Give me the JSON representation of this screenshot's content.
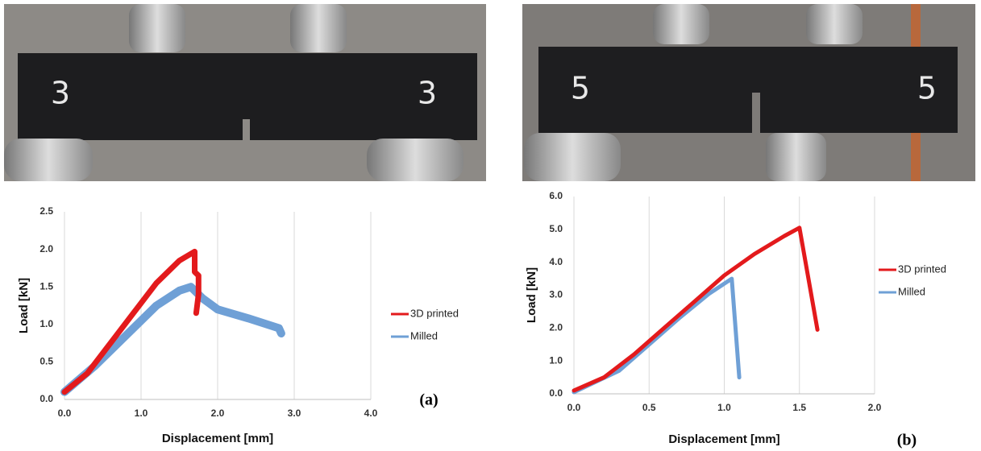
{
  "photos": [
    {
      "labels": [
        "3",
        "3"
      ]
    },
    {
      "labels": [
        "5",
        "5"
      ]
    }
  ],
  "chart_data": [
    {
      "type": "line",
      "annotation": "(a)",
      "x_label": "Displacement [mm]",
      "y_label": "Load [kN]",
      "xlim": [
        0,
        4
      ],
      "ylim": [
        0,
        2.5
      ],
      "xticks": [
        {
          "value": 0,
          "label": "0.0"
        },
        {
          "value": 1,
          "label": "1.0"
        },
        {
          "value": 2,
          "label": "2.0"
        },
        {
          "value": 3,
          "label": "3.0"
        },
        {
          "value": 4,
          "label": "4.0"
        }
      ],
      "yticks": [
        {
          "value": 0,
          "label": "0.0"
        },
        {
          "value": 0.5,
          "label": "0.5"
        },
        {
          "value": 1,
          "label": "1.0"
        },
        {
          "value": 1.5,
          "label": "1.5"
        },
        {
          "value": 2,
          "label": "2.0"
        },
        {
          "value": 2.5,
          "label": "2.5"
        }
      ],
      "grid": "x",
      "legend": "right",
      "series": [
        {
          "name": "3D printed",
          "color": "#e31a1c",
          "x": [
            0,
            0.3,
            0.6,
            0.9,
            1.2,
            1.5,
            1.7,
            1.7,
            1.75,
            1.75,
            1.72
          ],
          "values": [
            0.1,
            0.35,
            0.75,
            1.15,
            1.55,
            1.85,
            1.97,
            1.7,
            1.65,
            1.4,
            1.15
          ]
        },
        {
          "name": "Milled",
          "color": "#6fa0d6",
          "x": [
            0,
            0.4,
            0.8,
            1.2,
            1.5,
            1.65,
            1.8,
            2.0,
            2.4,
            2.8,
            2.83
          ],
          "values": [
            0.1,
            0.45,
            0.85,
            1.25,
            1.45,
            1.5,
            1.35,
            1.2,
            1.08,
            0.95,
            0.88
          ]
        }
      ]
    },
    {
      "type": "line",
      "annotation": "(b)",
      "x_label": "Displacement [mm]",
      "y_label": "Load [kN]",
      "xlim": [
        0,
        2
      ],
      "ylim": [
        0,
        6
      ],
      "xticks": [
        {
          "value": 0,
          "label": "0.0"
        },
        {
          "value": 0.5,
          "label": "0.5"
        },
        {
          "value": 1,
          "label": "1.0"
        },
        {
          "value": 1.5,
          "label": "1.5"
        },
        {
          "value": 2,
          "label": "2.0"
        }
      ],
      "yticks": [
        {
          "value": 0,
          "label": "0.0"
        },
        {
          "value": 1,
          "label": "1.0"
        },
        {
          "value": 2,
          "label": "2.0"
        },
        {
          "value": 3,
          "label": "3.0"
        },
        {
          "value": 4,
          "label": "4.0"
        },
        {
          "value": 5,
          "label": "5.0"
        },
        {
          "value": 6,
          "label": "6.0"
        }
      ],
      "grid": "x",
      "legend": "right",
      "series": [
        {
          "name": "3D printed",
          "color": "#e31a1c",
          "x": [
            0,
            0.2,
            0.4,
            0.6,
            0.8,
            1.0,
            1.2,
            1.4,
            1.5,
            1.62
          ],
          "values": [
            0.1,
            0.5,
            1.2,
            2.0,
            2.8,
            3.6,
            4.25,
            4.8,
            5.05,
            1.95
          ]
        },
        {
          "name": "Milled",
          "color": "#6fa0d6",
          "x": [
            0,
            0.3,
            0.5,
            0.7,
            0.9,
            1.05,
            1.1
          ],
          "values": [
            0.05,
            0.7,
            1.5,
            2.3,
            3.05,
            3.5,
            0.5
          ]
        }
      ]
    }
  ]
}
